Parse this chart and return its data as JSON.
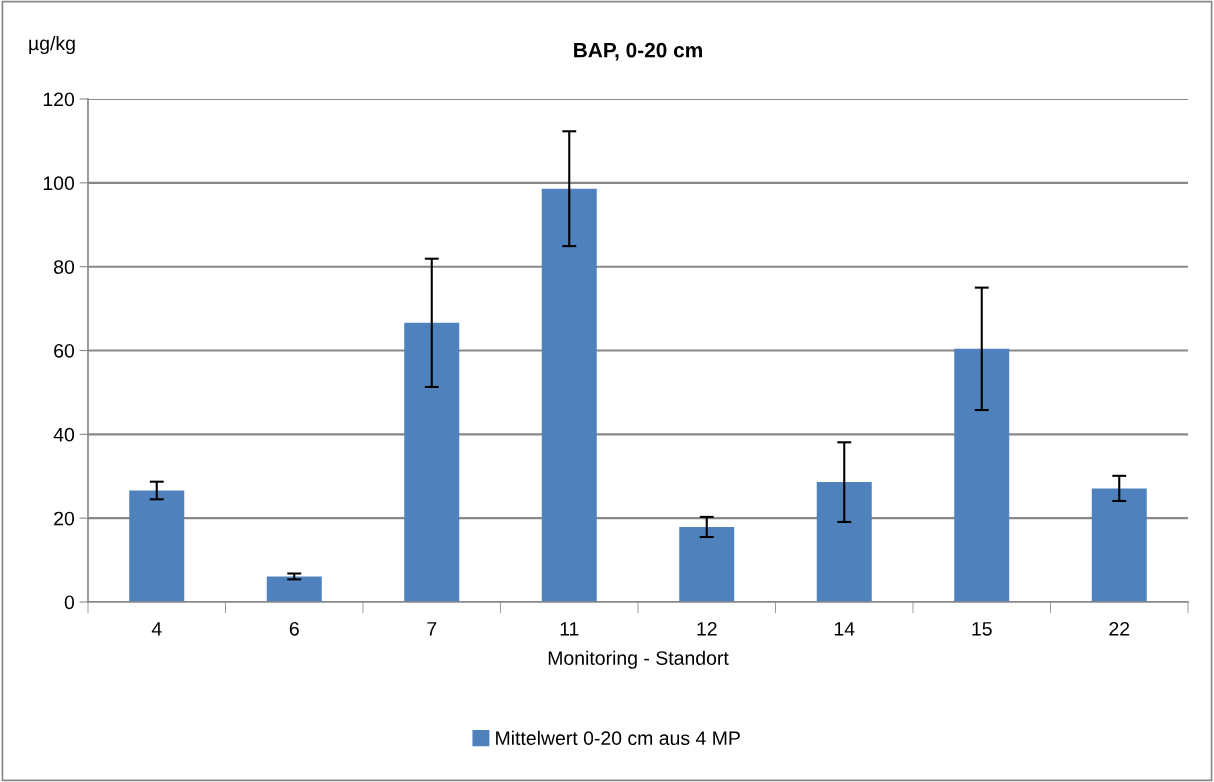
{
  "chart_data": {
    "type": "bar",
    "title": "BAP, 0-20 cm",
    "xlabel": "Monitoring - Standort",
    "ylabel": "µg/kg",
    "categories": [
      "4",
      "6",
      "7",
      "11",
      "12",
      "14",
      "15",
      "22"
    ],
    "series": [
      {
        "name": "Mittelwert 0-20 cm aus 4 MP",
        "color": "#4f81bd",
        "values": [
          26.6,
          6.1,
          66.6,
          98.6,
          17.9,
          28.6,
          60.4,
          27.1
        ],
        "errors": [
          2.1,
          0.7,
          15.3,
          13.7,
          2.4,
          9.5,
          14.6,
          3.0
        ]
      }
    ],
    "ylim": [
      0,
      120
    ],
    "yticks": [
      0,
      20,
      40,
      60,
      80,
      100,
      120
    ],
    "grid": "y",
    "legend": "bottom"
  }
}
